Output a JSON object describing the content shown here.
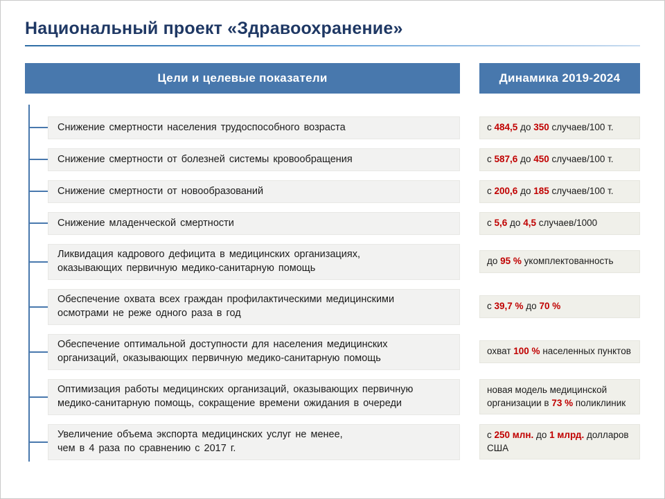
{
  "page": {
    "title": "Национальный проект «Здравоохранение»"
  },
  "headers": {
    "goals": "Цели и целевые показатели",
    "dynamics": "Динамика 2019-2024"
  },
  "colors": {
    "title_navy": "#1f3864",
    "header_blue": "#4878ad",
    "accent_red": "#c00000",
    "goal_box_gray": "#f2f2f1",
    "dynamic_box_gray": "#f0f0ea"
  },
  "rows": [
    {
      "goal": "Снижение смертности населения трудоспособного возраста",
      "dynamic": [
        {
          "t": "с "
        },
        {
          "t": "484,5",
          "em": true
        },
        {
          "t": " до "
        },
        {
          "t": "350",
          "em": true
        },
        {
          "t": " случаев/100 т."
        }
      ]
    },
    {
      "goal": "Снижение смертности от болезней системы кровообращения",
      "dynamic": [
        {
          "t": "с "
        },
        {
          "t": "587,6",
          "em": true
        },
        {
          "t": " до "
        },
        {
          "t": "450",
          "em": true
        },
        {
          "t": " случаев/100 т."
        }
      ]
    },
    {
      "goal": "Снижение смертности от новообразований",
      "dynamic": [
        {
          "t": "с "
        },
        {
          "t": "200,6",
          "em": true
        },
        {
          "t": " до "
        },
        {
          "t": "185",
          "em": true
        },
        {
          "t": " случаев/100 т."
        }
      ]
    },
    {
      "goal": "Снижение младенческой смертности",
      "dynamic": [
        {
          "t": "с "
        },
        {
          "t": "5,6",
          "em": true
        },
        {
          "t": " до "
        },
        {
          "t": "4,5",
          "em": true
        },
        {
          "t": " случаев/1000"
        }
      ]
    },
    {
      "goal": "Ликвидация кадрового дефицита в медицинских организациях,\nоказывающих первичную медико-санитарную помощь",
      "dynamic": [
        {
          "t": "до "
        },
        {
          "t": "95 %",
          "em": true
        },
        {
          "t": " укомплектованность"
        }
      ]
    },
    {
      "goal": "Обеспечение охвата всех граждан профилактическими медицинскими\nосмотрами не реже одного раза в год",
      "dynamic": [
        {
          "t": "с "
        },
        {
          "t": "39,7 %",
          "em": true
        },
        {
          "t": " до "
        },
        {
          "t": "70 %",
          "em": true
        }
      ]
    },
    {
      "goal": "Обеспечение оптимальной доступности для населения медицинских\nорганизаций, оказывающих первичную медико-санитарную помощь",
      "dynamic": [
        {
          "t": "охват "
        },
        {
          "t": "100 %",
          "em": true
        },
        {
          "t": " населенных пунктов"
        }
      ]
    },
    {
      "goal": "Оптимизация работы медицинских организаций, оказывающих первичную\nмедико-санитарную помощь, сокращение времени ожидания в очереди",
      "dynamic": [
        {
          "t": "новая модель медицинской организации в "
        },
        {
          "t": "73 %",
          "em": true
        },
        {
          "t": " поликлиник"
        }
      ]
    },
    {
      "goal": "Увеличение объема экспорта медицинских услуг не менее,\nчем в 4 раза по сравнению с 2017 г.",
      "dynamic": [
        {
          "t": "с "
        },
        {
          "t": "250 млн.",
          "em": true
        },
        {
          "t": " до "
        },
        {
          "t": "1 млрд.",
          "em": true
        },
        {
          "t": " долларов США"
        }
      ]
    }
  ]
}
